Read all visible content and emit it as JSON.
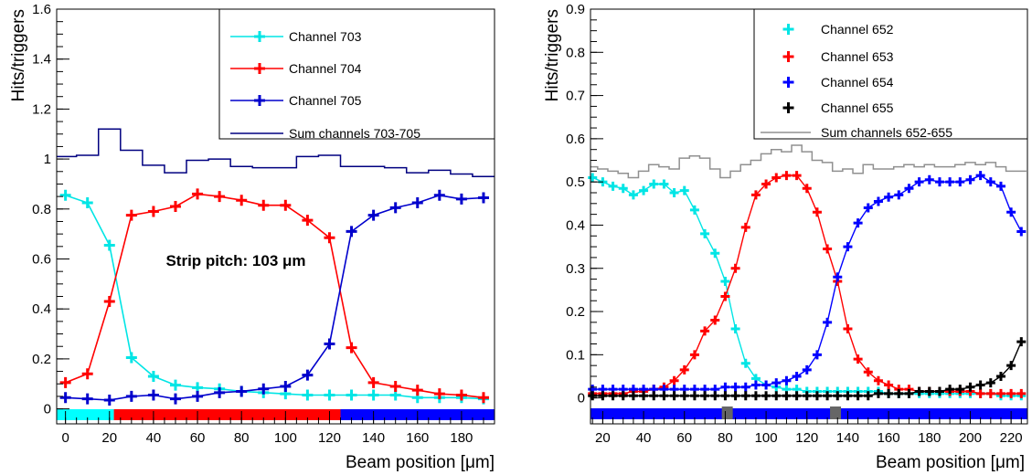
{
  "chart_data": [
    {
      "type": "line",
      "xlabel": "Beam position [μm]",
      "ylabel": "Hits/triggers",
      "xlim": [
        -4,
        195
      ],
      "ylim": [
        -0.06,
        1.6
      ],
      "xticks": [
        0,
        20,
        40,
        60,
        80,
        100,
        120,
        140,
        160,
        180
      ],
      "yticks": [
        0,
        0.2,
        0.4,
        0.6,
        0.8,
        1,
        1.2,
        1.4,
        1.6
      ],
      "ytick_labels": [
        "0",
        "0.2",
        "0.4",
        "0.6",
        "0.8",
        "1",
        "1.2",
        "1.4",
        "1.6"
      ],
      "legend_position": "top-right",
      "annotation": "Strip pitch: 103 μm",
      "strip_bar": [
        {
          "from": -4,
          "to": 22,
          "color": "#00ffff"
        },
        {
          "from": 22,
          "to": 125,
          "color": "#ff0000"
        },
        {
          "from": 125,
          "to": 195,
          "color": "#0000ff"
        }
      ],
      "series": [
        {
          "name": "Channel 703",
          "color": "#00e5e5",
          "style": "line-markers",
          "x": [
            0,
            10,
            20,
            30,
            40,
            50,
            60,
            70,
            80,
            90,
            100,
            110,
            120,
            130,
            140,
            150,
            160,
            170,
            180,
            190
          ],
          "y": [
            0.855,
            0.825,
            0.655,
            0.205,
            0.13,
            0.095,
            0.085,
            0.08,
            0.07,
            0.065,
            0.06,
            0.055,
            0.055,
            0.055,
            0.055,
            0.055,
            0.045,
            0.045,
            0.045,
            0.04
          ]
        },
        {
          "name": "Channel 704",
          "color": "#ff0000",
          "style": "line-markers",
          "x": [
            0,
            10,
            20,
            30,
            40,
            50,
            60,
            70,
            80,
            90,
            100,
            110,
            120,
            130,
            140,
            150,
            160,
            170,
            180,
            190
          ],
          "y": [
            0.105,
            0.14,
            0.43,
            0.775,
            0.79,
            0.81,
            0.86,
            0.85,
            0.835,
            0.815,
            0.815,
            0.755,
            0.685,
            0.245,
            0.105,
            0.09,
            0.075,
            0.06,
            0.055,
            0.045
          ]
        },
        {
          "name": "Channel 705",
          "color": "#0000cc",
          "style": "line-markers",
          "x": [
            0,
            10,
            20,
            30,
            40,
            50,
            60,
            70,
            80,
            90,
            100,
            110,
            120,
            130,
            140,
            150,
            160,
            170,
            180,
            190
          ],
          "y": [
            0.045,
            0.04,
            0.035,
            0.05,
            0.055,
            0.04,
            0.05,
            0.065,
            0.07,
            0.08,
            0.09,
            0.135,
            0.26,
            0.71,
            0.775,
            0.805,
            0.825,
            0.855,
            0.84,
            0.845
          ]
        },
        {
          "name": "Sum channels 703-705",
          "color": "#000080",
          "style": "step",
          "x": [
            0,
            10,
            20,
            30,
            40,
            50,
            60,
            70,
            80,
            90,
            100,
            110,
            120,
            130,
            140,
            150,
            160,
            170,
            180,
            190
          ],
          "y": [
            1.01,
            1.015,
            1.12,
            1.035,
            0.975,
            0.945,
            0.995,
            1.0,
            0.97,
            0.965,
            0.965,
            1.01,
            1.015,
            0.97,
            0.97,
            0.965,
            0.945,
            0.955,
            0.94,
            0.93
          ]
        }
      ]
    },
    {
      "type": "line",
      "xlabel": "Beam position [μm]",
      "ylabel": "Hits/triggers",
      "xlim": [
        14,
        228
      ],
      "ylim": [
        -0.06,
        0.9
      ],
      "xticks": [
        20,
        40,
        60,
        80,
        100,
        120,
        140,
        160,
        180,
        200,
        220
      ],
      "yticks": [
        0,
        0.1,
        0.2,
        0.3,
        0.4,
        0.5,
        0.6,
        0.7,
        0.8,
        0.9
      ],
      "ytick_labels": [
        "0",
        "0.1",
        "0.2",
        "0.3",
        "0.4",
        "0.5",
        "0.6",
        "0.7",
        "0.8",
        "0.9"
      ],
      "legend_position": "top-right",
      "strip_bar": [
        {
          "from": 14,
          "to": 228,
          "color": "#0000ff"
        }
      ],
      "strip_markers": [
        81,
        134
      ],
      "series": [
        {
          "name": "Channel 652",
          "color": "#00e5e5",
          "style": "line-markers",
          "x": [
            15,
            20,
            25,
            30,
            35,
            40,
            45,
            50,
            55,
            60,
            65,
            70,
            75,
            80,
            85,
            90,
            95,
            100,
            105,
            110,
            115,
            120,
            125,
            130,
            135,
            140,
            145,
            150,
            155,
            160,
            165,
            170,
            175,
            180,
            185,
            190,
            195,
            200,
            205,
            210,
            215,
            220,
            225
          ],
          "y": [
            0.51,
            0.5,
            0.49,
            0.485,
            0.47,
            0.48,
            0.495,
            0.495,
            0.475,
            0.48,
            0.435,
            0.38,
            0.335,
            0.27,
            0.16,
            0.08,
            0.045,
            0.03,
            0.025,
            0.02,
            0.02,
            0.015,
            0.015,
            0.015,
            0.015,
            0.015,
            0.015,
            0.015,
            0.015,
            0.01,
            0.01,
            0.01,
            0.01,
            0.01,
            0.01,
            0.01,
            0.01,
            0.01,
            0.01,
            0.01,
            0.005,
            0.005,
            0.005
          ]
        },
        {
          "name": "Channel 653",
          "color": "#ff0000",
          "style": "line-markers",
          "x": [
            15,
            20,
            25,
            30,
            35,
            40,
            45,
            50,
            55,
            60,
            65,
            70,
            75,
            80,
            85,
            90,
            95,
            100,
            105,
            110,
            115,
            120,
            125,
            130,
            135,
            140,
            145,
            150,
            155,
            160,
            165,
            170,
            175,
            180,
            185,
            190,
            195,
            200,
            205,
            210,
            215,
            220,
            225
          ],
          "y": [
            0.01,
            0.01,
            0.01,
            0.01,
            0.015,
            0.015,
            0.02,
            0.025,
            0.04,
            0.065,
            0.1,
            0.155,
            0.18,
            0.235,
            0.3,
            0.395,
            0.47,
            0.495,
            0.51,
            0.515,
            0.515,
            0.485,
            0.43,
            0.345,
            0.27,
            0.16,
            0.09,
            0.06,
            0.04,
            0.03,
            0.02,
            0.02,
            0.015,
            0.015,
            0.015,
            0.015,
            0.015,
            0.015,
            0.01,
            0.01,
            0.01,
            0.01,
            0.01
          ]
        },
        {
          "name": "Channel 654",
          "color": "#0000ff",
          "style": "line-markers",
          "x": [
            15,
            20,
            25,
            30,
            35,
            40,
            45,
            50,
            55,
            60,
            65,
            70,
            75,
            80,
            85,
            90,
            95,
            100,
            105,
            110,
            115,
            120,
            125,
            130,
            135,
            140,
            145,
            150,
            155,
            160,
            165,
            170,
            175,
            180,
            185,
            190,
            195,
            200,
            205,
            210,
            215,
            220,
            225
          ],
          "y": [
            0.02,
            0.02,
            0.02,
            0.02,
            0.02,
            0.02,
            0.02,
            0.02,
            0.02,
            0.02,
            0.02,
            0.02,
            0.02,
            0.025,
            0.025,
            0.025,
            0.03,
            0.03,
            0.035,
            0.04,
            0.05,
            0.065,
            0.1,
            0.175,
            0.28,
            0.35,
            0.405,
            0.44,
            0.455,
            0.465,
            0.47,
            0.485,
            0.5,
            0.505,
            0.5,
            0.5,
            0.5,
            0.505,
            0.515,
            0.5,
            0.49,
            0.43,
            0.385
          ]
        },
        {
          "name": "Channel 655",
          "color": "#000000",
          "style": "line-markers",
          "x": [
            15,
            20,
            25,
            30,
            35,
            40,
            45,
            50,
            55,
            60,
            65,
            70,
            75,
            80,
            85,
            90,
            95,
            100,
            105,
            110,
            115,
            120,
            125,
            130,
            135,
            140,
            145,
            150,
            155,
            160,
            165,
            170,
            175,
            180,
            185,
            190,
            195,
            200,
            205,
            210,
            215,
            220,
            225
          ],
          "y": [
            0.005,
            0.005,
            0.005,
            0.005,
            0.005,
            0.005,
            0.005,
            0.005,
            0.005,
            0.005,
            0.005,
            0.005,
            0.005,
            0.005,
            0.005,
            0.005,
            0.005,
            0.005,
            0.005,
            0.005,
            0.005,
            0.005,
            0.005,
            0.005,
            0.005,
            0.005,
            0.005,
            0.005,
            0.01,
            0.01,
            0.01,
            0.01,
            0.015,
            0.015,
            0.015,
            0.02,
            0.02,
            0.025,
            0.03,
            0.035,
            0.05,
            0.075,
            0.13
          ]
        },
        {
          "name": "Sum channels 652-655",
          "color": "#909090",
          "style": "step",
          "x": [
            15,
            20,
            25,
            30,
            35,
            40,
            45,
            50,
            55,
            60,
            65,
            70,
            75,
            80,
            85,
            90,
            95,
            100,
            105,
            110,
            115,
            120,
            125,
            130,
            135,
            140,
            145,
            150,
            155,
            160,
            165,
            170,
            175,
            180,
            185,
            190,
            195,
            200,
            205,
            210,
            215,
            220,
            225
          ],
          "y": [
            0.535,
            0.53,
            0.525,
            0.52,
            0.51,
            0.525,
            0.54,
            0.535,
            0.53,
            0.555,
            0.56,
            0.555,
            0.53,
            0.51,
            0.525,
            0.54,
            0.55,
            0.565,
            0.575,
            0.57,
            0.585,
            0.57,
            0.55,
            0.545,
            0.525,
            0.53,
            0.52,
            0.54,
            0.53,
            0.53,
            0.535,
            0.54,
            0.535,
            0.54,
            0.535,
            0.535,
            0.54,
            0.545,
            0.54,
            0.545,
            0.535,
            0.525,
            0.525
          ]
        }
      ]
    }
  ]
}
